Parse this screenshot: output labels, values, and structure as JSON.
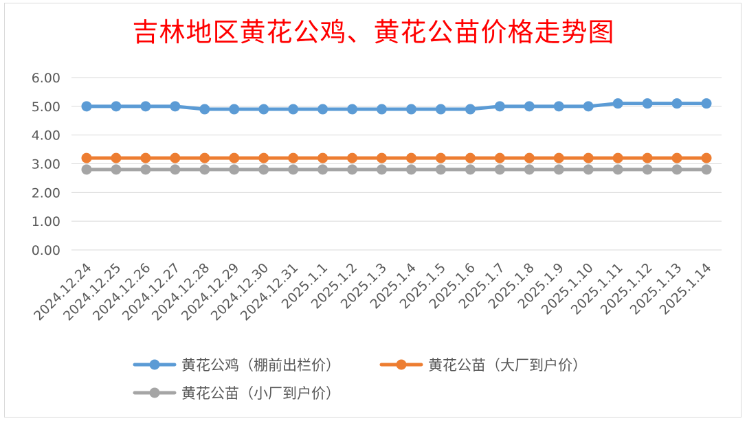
{
  "chart_data": {
    "type": "line",
    "title": "吉林地区黄花公鸡、黄花公苗价格走势图",
    "categories": [
      "2024.12.24",
      "2024.12.25",
      "2024.12.26",
      "2024.12.27",
      "2024.12.28",
      "2024.12.29",
      "2024.12.30",
      "2024.12.31",
      "2025.1.1",
      "2025.1.2",
      "2025.1.3",
      "2025.1.4",
      "2025.1.5",
      "2025.1.6",
      "2025.1.7",
      "2025.1.8",
      "2025.1.9",
      "2025.1.10",
      "2025.1.11",
      "2025.1.12",
      "2025.1.13",
      "2025.1.14"
    ],
    "yticks": [
      "0.00",
      "1.00",
      "2.00",
      "3.00",
      "4.00",
      "5.00",
      "6.00"
    ],
    "ylim": [
      0,
      6
    ],
    "grid": true,
    "legend_position": "bottom",
    "series": [
      {
        "name": "黄花公鸡（棚前出栏价）",
        "color": "#5b9bd5",
        "values": [
          5.0,
          5.0,
          5.0,
          5.0,
          4.9,
          4.9,
          4.9,
          4.9,
          4.9,
          4.9,
          4.9,
          4.9,
          4.9,
          4.9,
          5.0,
          5.0,
          5.0,
          5.0,
          5.1,
          5.1,
          5.1,
          5.1
        ]
      },
      {
        "name": "黄花公苗（大厂到户价）",
        "color": "#ed7d31",
        "values": [
          3.2,
          3.2,
          3.2,
          3.2,
          3.2,
          3.2,
          3.2,
          3.2,
          3.2,
          3.2,
          3.2,
          3.2,
          3.2,
          3.2,
          3.2,
          3.2,
          3.2,
          3.2,
          3.2,
          3.2,
          3.2,
          3.2
        ]
      },
      {
        "name": "黄花公苗（小厂到户价）",
        "color": "#a5a5a5",
        "values": [
          2.8,
          2.8,
          2.8,
          2.8,
          2.8,
          2.8,
          2.8,
          2.8,
          2.8,
          2.8,
          2.8,
          2.8,
          2.8,
          2.8,
          2.8,
          2.8,
          2.8,
          2.8,
          2.8,
          2.8,
          2.8,
          2.8
        ]
      }
    ]
  }
}
